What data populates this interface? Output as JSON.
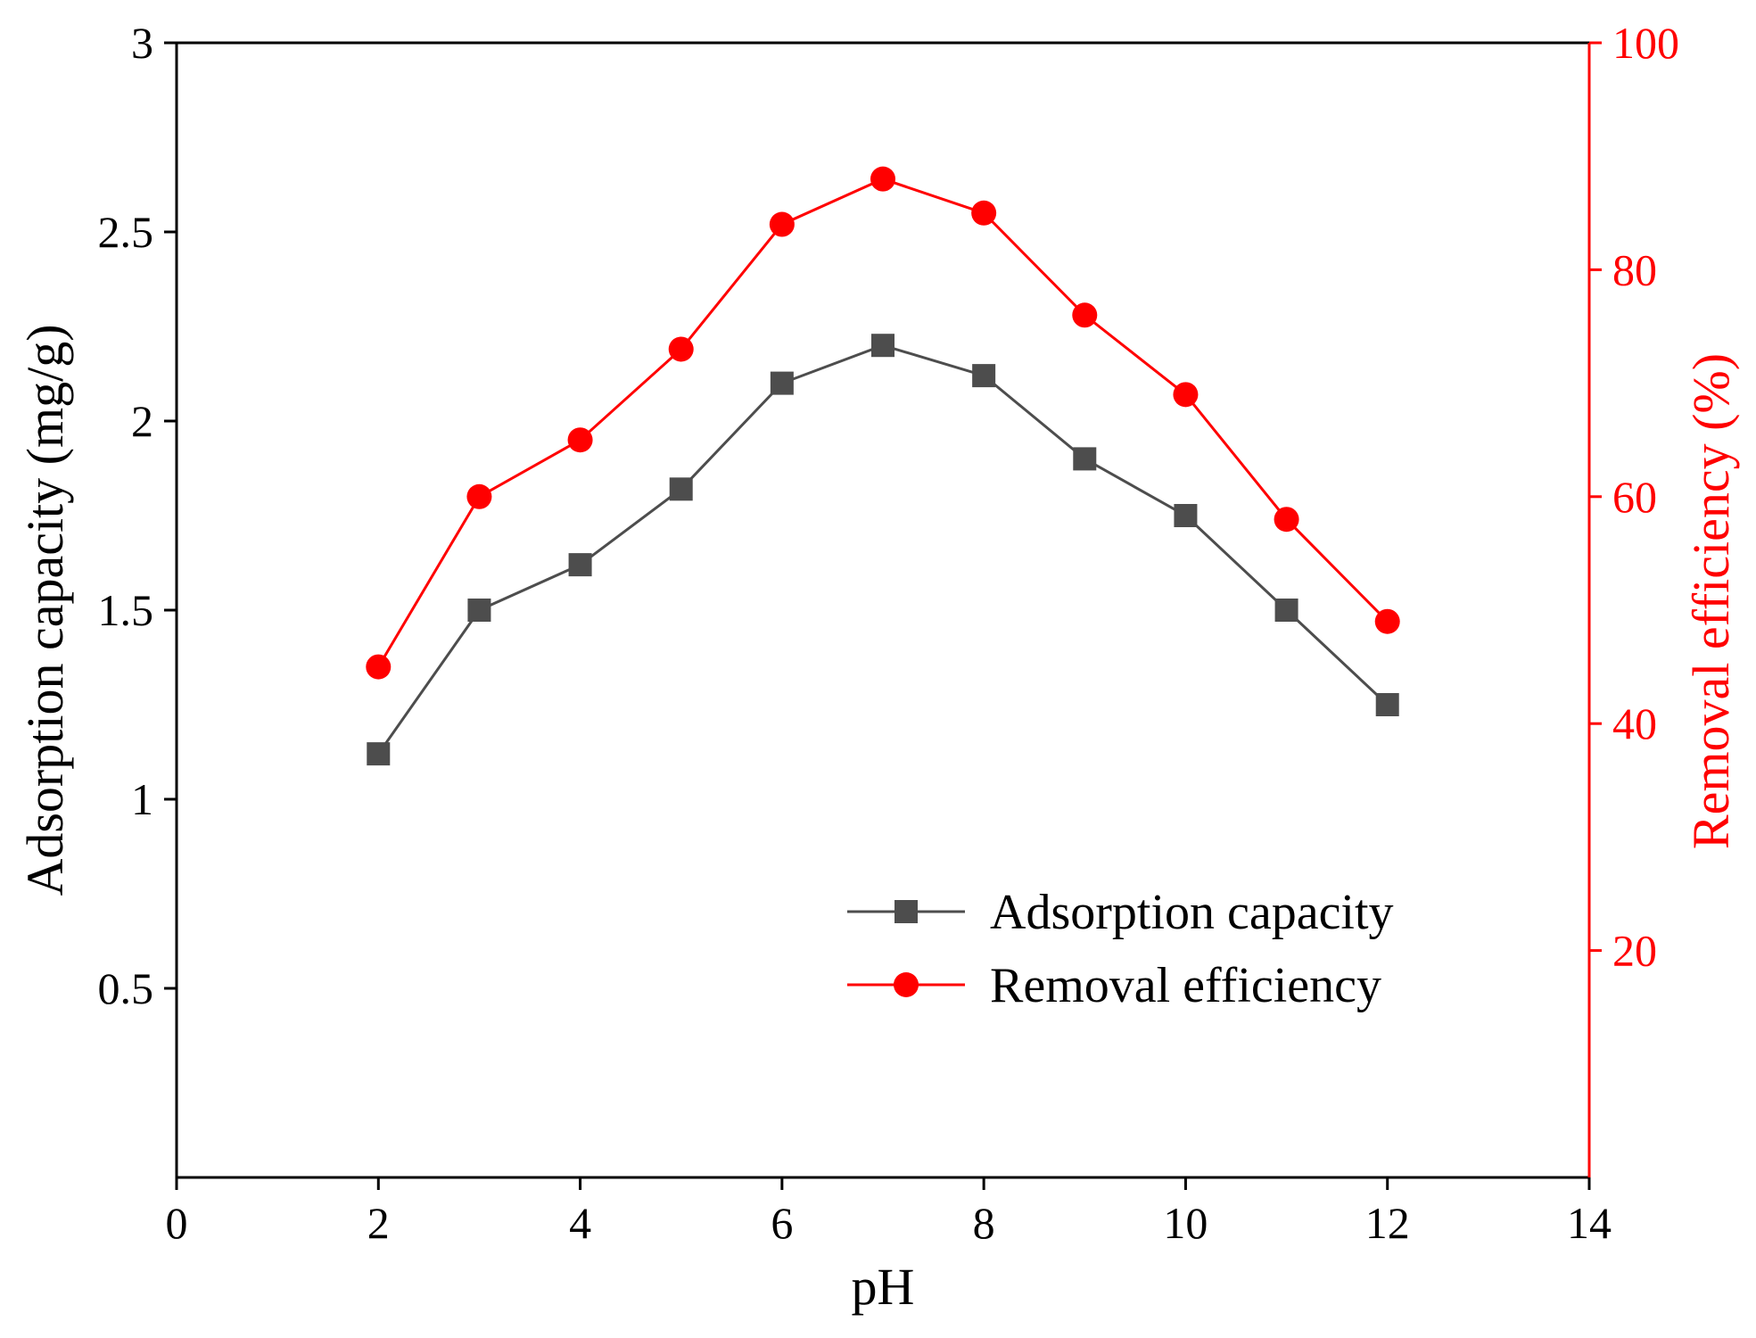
{
  "chart_data": {
    "type": "line",
    "title": "",
    "xlabel": "pH",
    "ylabel_left": "Adsorption capacity (mg/g)",
    "ylabel_right": "Removal efficiency (%)",
    "xlim": [
      0,
      14
    ],
    "ylim_left": [
      0,
      3
    ],
    "ylim_right": [
      0,
      100
    ],
    "x_ticks": [
      0,
      2,
      4,
      6,
      8,
      10,
      12,
      14
    ],
    "y_left_ticks": [
      0.5,
      1,
      1.5,
      2,
      2.5,
      3
    ],
    "y_left_tick_labels": [
      "0.5",
      "1",
      "1.5",
      "2",
      "2.5",
      "3"
    ],
    "y_right_ticks": [
      20,
      40,
      60,
      80,
      100
    ],
    "grid": false,
    "legend_position": "lower-right",
    "series": [
      {
        "name": "Adsorption capacity",
        "axis": "left",
        "marker": "square",
        "color": "#4d4d4d",
        "x": [
          2,
          3,
          4,
          5,
          6,
          7,
          8,
          9,
          10,
          11,
          12
        ],
        "values": [
          1.12,
          1.5,
          1.62,
          1.82,
          2.1,
          2.2,
          2.12,
          1.9,
          1.75,
          1.5,
          1.25
        ]
      },
      {
        "name": "Removal efficiency",
        "axis": "right",
        "marker": "circle",
        "color": "#ff0000",
        "x": [
          2,
          3,
          4,
          5,
          6,
          7,
          8,
          9,
          10,
          11,
          12
        ],
        "values": [
          45,
          60,
          65,
          73,
          84,
          88,
          85,
          76,
          69,
          58,
          49
        ]
      }
    ],
    "colors": {
      "axis_left": "#000000",
      "axis_right": "#ff0000"
    }
  }
}
